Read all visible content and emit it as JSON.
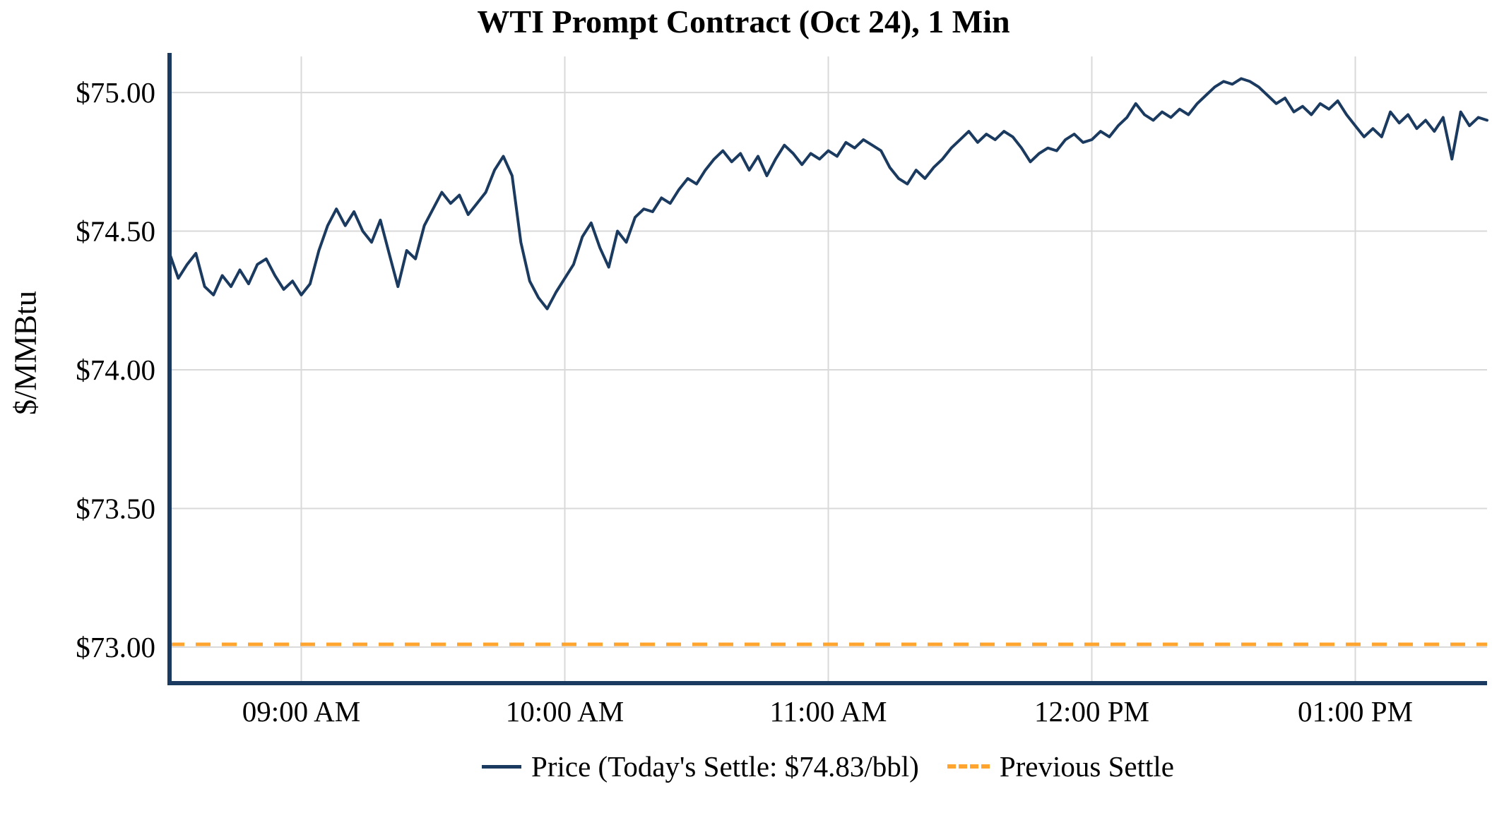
{
  "title": "WTI Prompt Contract (Oct 24), 1 Min",
  "y_axis_label": "$/MMBtu",
  "legend": {
    "price_label": "Price (Today's Settle: $74.83/bbl)",
    "previous_settle_label": "Previous Settle"
  },
  "colors": {
    "price_line": "#1b3a5f",
    "previous_settle_line": "#FFA42E",
    "axis": "#1b3a5f",
    "grid": "#d9d9d9",
    "text": "#000000",
    "background": "#ffffff"
  },
  "chart_data": {
    "type": "line",
    "title": "WTI Prompt Contract (Oct 24), 1 Min",
    "xlabel": "",
    "ylabel": "$/MMBtu",
    "grid": true,
    "legend_position": "bottom",
    "x_unit": "minutes_since_midnight",
    "x_range": [
      510,
      810
    ],
    "ylim": [
      72.87,
      75.13
    ],
    "y_ticks": [
      {
        "v": 73.0,
        "label": "$73.00"
      },
      {
        "v": 73.5,
        "label": "$73.50"
      },
      {
        "v": 74.0,
        "label": "$74.00"
      },
      {
        "v": 74.5,
        "label": "$74.50"
      },
      {
        "v": 75.0,
        "label": "$75.00"
      }
    ],
    "x_ticks": [
      {
        "t": 540,
        "label": "09:00 AM"
      },
      {
        "t": 600,
        "label": "10:00 AM"
      },
      {
        "t": 660,
        "label": "11:00 AM"
      },
      {
        "t": 720,
        "label": "12:00 PM"
      },
      {
        "t": 780,
        "label": "01:00 PM"
      }
    ],
    "todays_settle": 74.83,
    "previous_settle": 73.01,
    "series": [
      {
        "name": "Price",
        "style": "solid",
        "x_start": 510,
        "x_step": 2,
        "values": [
          74.42,
          74.33,
          74.38,
          74.42,
          74.3,
          74.27,
          74.34,
          74.3,
          74.36,
          74.31,
          74.38,
          74.4,
          74.34,
          74.29,
          74.32,
          74.27,
          74.31,
          74.43,
          74.52,
          74.58,
          74.52,
          74.57,
          74.5,
          74.46,
          74.54,
          74.42,
          74.3,
          74.43,
          74.4,
          74.52,
          74.58,
          74.64,
          74.6,
          74.63,
          74.56,
          74.6,
          74.64,
          74.72,
          74.77,
          74.7,
          74.46,
          74.32,
          74.26,
          74.22,
          74.28,
          74.33,
          74.38,
          74.48,
          74.53,
          74.44,
          74.37,
          74.5,
          74.46,
          74.55,
          74.58,
          74.57,
          74.62,
          74.6,
          74.65,
          74.69,
          74.67,
          74.72,
          74.76,
          74.79,
          74.75,
          74.78,
          74.72,
          74.77,
          74.7,
          74.76,
          74.81,
          74.78,
          74.74,
          74.78,
          74.76,
          74.79,
          74.77,
          74.82,
          74.8,
          74.83,
          74.81,
          74.79,
          74.73,
          74.69,
          74.67,
          74.72,
          74.69,
          74.73,
          74.76,
          74.8,
          74.83,
          74.86,
          74.82,
          74.85,
          74.83,
          74.86,
          74.84,
          74.8,
          74.75,
          74.78,
          74.8,
          74.79,
          74.83,
          74.85,
          74.82,
          74.83,
          74.86,
          74.84,
          74.88,
          74.91,
          74.96,
          74.92,
          74.9,
          74.93,
          74.91,
          74.94,
          74.92,
          74.96,
          74.99,
          75.02,
          75.04,
          75.03,
          75.05,
          75.04,
          75.02,
          74.99,
          74.96,
          74.98,
          74.93,
          74.95,
          74.92,
          74.96,
          74.94,
          74.97,
          74.92,
          74.88,
          74.84,
          74.87,
          74.84,
          74.93,
          74.89,
          74.92,
          74.87,
          74.9,
          74.86,
          74.91,
          74.76,
          74.93,
          74.88,
          74.91,
          74.9
        ]
      },
      {
        "name": "Previous Settle",
        "style": "dashed",
        "value": 73.01
      }
    ]
  }
}
